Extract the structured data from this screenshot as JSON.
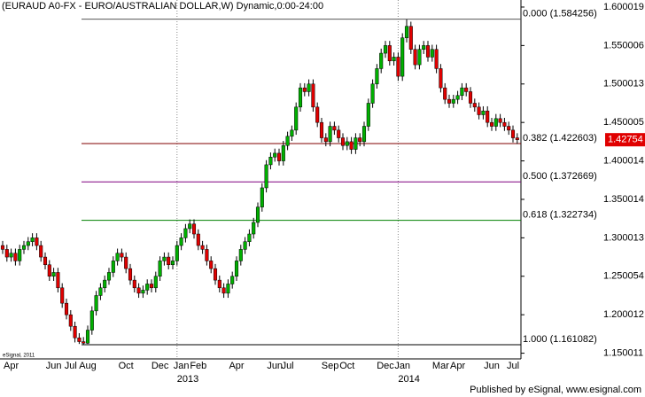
{
  "chart_data": {
    "type": "candlestick",
    "title": "(EURAUD A0-FX - EURO/AUSTRALIAN DOLLAR,W) Dynamic,0:00-24:00",
    "footer": "Published by eSignal, www.esignal.com",
    "watermark": "eSignal, 2011",
    "categories": [
      null,
      null,
      "Apr",
      null,
      null,
      null,
      null,
      null,
      null,
      null,
      null,
      null,
      "Jun",
      null,
      null,
      null,
      "Jul",
      null,
      null,
      null,
      "Aug",
      null,
      null,
      null,
      null,
      null,
      null,
      null,
      null,
      "Oct",
      null,
      null,
      null,
      null,
      null,
      null,
      null,
      "Dec",
      null,
      null,
      null,
      null,
      "Jan",
      null,
      null,
      null,
      "Feb",
      null,
      null,
      null,
      null,
      null,
      null,
      null,
      null,
      "Apr",
      null,
      null,
      null,
      null,
      null,
      null,
      null,
      null,
      "Jun",
      null,
      null,
      "Jul",
      null,
      null,
      null,
      null,
      null,
      null,
      null,
      null,
      null,
      "Sep",
      null,
      null,
      null,
      "Oct",
      null,
      null,
      null,
      null,
      null,
      null,
      null,
      null,
      "Dec",
      null,
      null,
      null,
      "Jan",
      null,
      null,
      null,
      null,
      null,
      null,
      null,
      null,
      "Mar",
      null,
      null,
      null,
      "Apr",
      null,
      null,
      null,
      null,
      null,
      null,
      null,
      "Jun",
      null,
      null,
      null,
      null,
      "Jul",
      null
    ],
    "years": [
      null,
      null,
      null,
      null,
      null,
      null,
      null,
      null,
      null,
      null,
      null,
      null,
      null,
      null,
      null,
      null,
      null,
      null,
      null,
      null,
      null,
      null,
      null,
      null,
      null,
      null,
      null,
      null,
      null,
      null,
      null,
      null,
      null,
      null,
      null,
      null,
      null,
      null,
      null,
      null,
      null,
      "2013",
      null,
      null,
      null,
      null,
      null,
      null,
      null,
      null,
      null,
      null,
      null,
      null,
      null,
      null,
      null,
      null,
      null,
      null,
      null,
      null,
      null,
      null,
      null,
      null,
      null,
      null,
      null,
      null,
      null,
      null,
      null,
      null,
      null,
      null,
      null,
      null,
      null,
      null,
      null,
      null,
      null,
      null,
      null,
      null,
      null,
      null,
      null,
      null,
      null,
      null,
      null,
      "2014",
      null,
      null,
      null,
      null,
      null,
      null,
      null,
      null,
      null,
      null,
      null,
      null,
      null,
      null,
      null,
      null,
      null,
      null,
      null,
      null,
      null,
      null,
      null,
      null,
      null,
      null,
      null,
      null
    ],
    "open": [
      1.29,
      1.285,
      1.275,
      1.28,
      1.27,
      1.285,
      1.29,
      1.295,
      1.3,
      1.29,
      1.275,
      1.265,
      1.25,
      1.255,
      1.235,
      1.215,
      1.2,
      1.185,
      1.17,
      1.165,
      1.163,
      1.18,
      1.205,
      1.225,
      1.235,
      1.245,
      1.255,
      1.27,
      1.28,
      1.275,
      1.26,
      1.245,
      1.235,
      1.228,
      1.232,
      1.24,
      1.235,
      1.25,
      1.27,
      1.275,
      1.265,
      1.27,
      1.29,
      1.3,
      1.312,
      1.318,
      1.305,
      1.29,
      1.285,
      1.27,
      1.26,
      1.245,
      1.235,
      1.228,
      1.24,
      1.25,
      1.27,
      1.285,
      1.295,
      1.305,
      1.32,
      1.34,
      1.365,
      1.395,
      1.405,
      1.41,
      1.4,
      1.42,
      1.432,
      1.44,
      1.47,
      1.495,
      1.49,
      1.5,
      1.47,
      1.45,
      1.43,
      1.425,
      1.445,
      1.44,
      1.43,
      1.42,
      1.425,
      1.415,
      1.43,
      1.425,
      1.445,
      1.475,
      1.5,
      1.52,
      1.54,
      1.55,
      1.53,
      1.535,
      1.51,
      1.56,
      1.575,
      1.545,
      1.525,
      1.545,
      1.55,
      1.535,
      1.545,
      1.52,
      1.495,
      1.48,
      1.475,
      1.48,
      1.485,
      1.495,
      1.49,
      1.475,
      1.47,
      1.46,
      1.465,
      1.45,
      1.445,
      1.455,
      1.45,
      1.445,
      1.44,
      1.43
    ],
    "high": [
      1.296,
      1.291,
      1.286,
      1.286,
      1.291,
      1.296,
      1.301,
      1.306,
      1.306,
      1.296,
      1.281,
      1.271,
      1.261,
      1.261,
      1.241,
      1.221,
      1.206,
      1.191,
      1.176,
      1.171,
      1.186,
      1.211,
      1.231,
      1.241,
      1.251,
      1.261,
      1.276,
      1.286,
      1.286,
      1.281,
      1.266,
      1.251,
      1.241,
      1.238,
      1.246,
      1.246,
      1.256,
      1.276,
      1.281,
      1.281,
      1.276,
      1.296,
      1.306,
      1.318,
      1.324,
      1.324,
      1.311,
      1.296,
      1.291,
      1.276,
      1.266,
      1.251,
      1.241,
      1.246,
      1.256,
      1.276,
      1.291,
      1.301,
      1.311,
      1.326,
      1.346,
      1.371,
      1.401,
      1.411,
      1.416,
      1.416,
      1.426,
      1.438,
      1.446,
      1.476,
      1.501,
      1.501,
      1.506,
      1.506,
      1.476,
      1.456,
      1.436,
      1.451,
      1.451,
      1.446,
      1.436,
      1.431,
      1.431,
      1.436,
      1.436,
      1.451,
      1.481,
      1.506,
      1.526,
      1.546,
      1.556,
      1.556,
      1.541,
      1.541,
      1.566,
      1.584,
      1.581,
      1.551,
      1.551,
      1.556,
      1.556,
      1.551,
      1.551,
      1.526,
      1.501,
      1.486,
      1.486,
      1.491,
      1.501,
      1.501,
      1.496,
      1.481,
      1.476,
      1.471,
      1.471,
      1.456,
      1.461,
      1.461,
      1.456,
      1.451,
      1.446,
      1.436
    ],
    "low": [
      1.279,
      1.269,
      1.269,
      1.264,
      1.264,
      1.279,
      1.284,
      1.289,
      1.284,
      1.269,
      1.259,
      1.244,
      1.244,
      1.229,
      1.209,
      1.194,
      1.179,
      1.164,
      1.162,
      1.161,
      1.162,
      1.174,
      1.199,
      1.219,
      1.229,
      1.239,
      1.249,
      1.264,
      1.269,
      1.254,
      1.239,
      1.229,
      1.222,
      1.222,
      1.226,
      1.229,
      1.229,
      1.244,
      1.264,
      1.259,
      1.259,
      1.264,
      1.284,
      1.294,
      1.306,
      1.299,
      1.284,
      1.279,
      1.264,
      1.254,
      1.239,
      1.229,
      1.222,
      1.222,
      1.234,
      1.244,
      1.264,
      1.279,
      1.289,
      1.299,
      1.314,
      1.334,
      1.359,
      1.389,
      1.399,
      1.394,
      1.394,
      1.414,
      1.426,
      1.434,
      1.464,
      1.484,
      1.484,
      1.464,
      1.444,
      1.424,
      1.419,
      1.419,
      1.434,
      1.424,
      1.414,
      1.414,
      1.409,
      1.409,
      1.419,
      1.419,
      1.439,
      1.469,
      1.494,
      1.514,
      1.534,
      1.524,
      1.524,
      1.504,
      1.504,
      1.554,
      1.539,
      1.519,
      1.519,
      1.539,
      1.529,
      1.529,
      1.514,
      1.489,
      1.474,
      1.469,
      1.469,
      1.474,
      1.479,
      1.484,
      1.469,
      1.464,
      1.454,
      1.454,
      1.444,
      1.439,
      1.439,
      1.444,
      1.439,
      1.434,
      1.424,
      1.422
    ],
    "close": [
      1.285,
      1.275,
      1.28,
      1.27,
      1.285,
      1.29,
      1.295,
      1.3,
      1.29,
      1.275,
      1.265,
      1.25,
      1.255,
      1.235,
      1.215,
      1.2,
      1.185,
      1.17,
      1.165,
      1.163,
      1.18,
      1.205,
      1.225,
      1.235,
      1.245,
      1.255,
      1.27,
      1.28,
      1.275,
      1.26,
      1.245,
      1.235,
      1.228,
      1.232,
      1.24,
      1.235,
      1.25,
      1.27,
      1.275,
      1.265,
      1.27,
      1.29,
      1.3,
      1.312,
      1.318,
      1.305,
      1.29,
      1.285,
      1.27,
      1.26,
      1.245,
      1.235,
      1.228,
      1.24,
      1.25,
      1.27,
      1.285,
      1.295,
      1.305,
      1.32,
      1.34,
      1.365,
      1.395,
      1.405,
      1.41,
      1.4,
      1.42,
      1.432,
      1.44,
      1.47,
      1.495,
      1.49,
      1.5,
      1.47,
      1.45,
      1.43,
      1.425,
      1.445,
      1.44,
      1.43,
      1.42,
      1.425,
      1.415,
      1.43,
      1.425,
      1.445,
      1.475,
      1.5,
      1.52,
      1.54,
      1.55,
      1.53,
      1.535,
      1.51,
      1.56,
      1.575,
      1.545,
      1.525,
      1.545,
      1.55,
      1.535,
      1.545,
      1.52,
      1.495,
      1.48,
      1.475,
      1.48,
      1.485,
      1.495,
      1.49,
      1.475,
      1.47,
      1.46,
      1.465,
      1.45,
      1.445,
      1.455,
      1.45,
      1.445,
      1.44,
      1.43,
      1.42754
    ],
    "up_color": "#00b000",
    "down_color": "#e00000",
    "ylim": [
      1.1426,
      1.6092
    ],
    "yticks": [
      1.150011,
      1.200012,
      1.250054,
      1.300013,
      1.350014,
      1.400014,
      1.450005,
      1.500013,
      1.550006,
      1.600019
    ],
    "fib_levels": [
      {
        "label": "0.000 (1.584256)",
        "value": 1.584256,
        "color": "#555555"
      },
      {
        "label": "0.382 (1.422603)",
        "value": 1.422603,
        "color": "#800000"
      },
      {
        "label": "0.500 (1.372669)",
        "value": 1.372669,
        "color": "#800080"
      },
      {
        "label": "0.618 (1.322734)",
        "value": 1.322734,
        "color": "#008000"
      },
      {
        "label": "1.000 (1.161082)",
        "value": 1.161082,
        "color": "#000000"
      }
    ],
    "last_price": 1.42754,
    "last_price_color": "#e00000",
    "grid": false
  }
}
